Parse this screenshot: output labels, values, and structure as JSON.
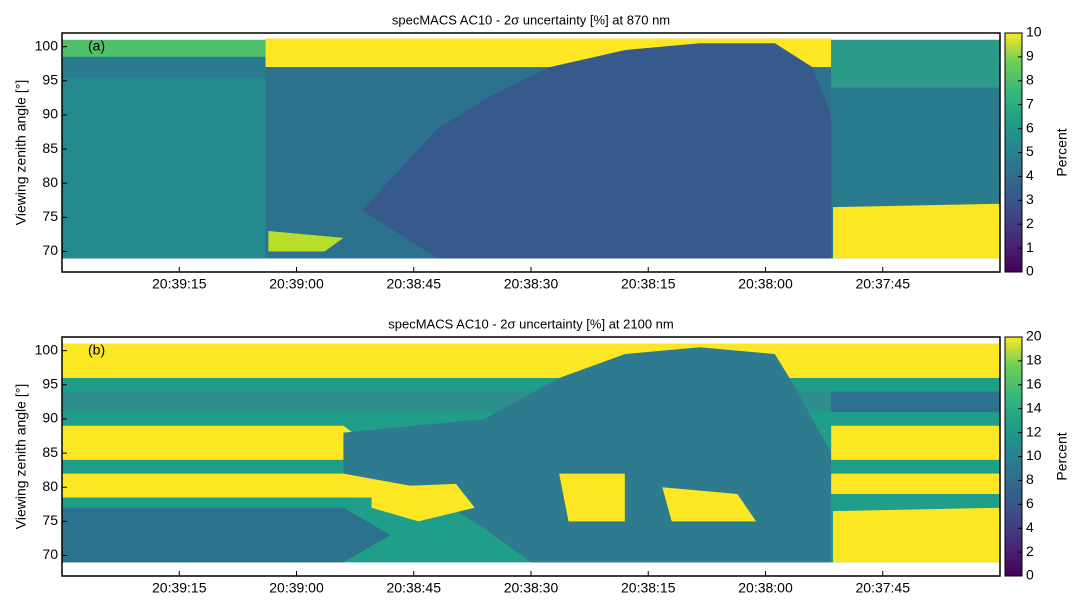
{
  "chart_data": [
    {
      "type": "heatmap",
      "title": "specMACS AC10 - 2σ uncertainty [%] at 870 nm",
      "panel_label": "(a)",
      "ylabel": "Viewing zenith angle [°]",
      "colormap": "viridis",
      "xlim": [
        74370,
        74250
      ],
      "xticks": [
        {
          "value": 74355,
          "label": "20:39:15"
        },
        {
          "value": 74340,
          "label": "20:39:00"
        },
        {
          "value": 74325,
          "label": "20:38:45"
        },
        {
          "value": 74310,
          "label": "20:38:30"
        },
        {
          "value": 74295,
          "label": "20:38:15"
        },
        {
          "value": 74280,
          "label": "20:38:00"
        },
        {
          "value": 74265,
          "label": "20:37:45"
        }
      ],
      "ylim": [
        67,
        102
      ],
      "yticks": [
        70,
        75,
        80,
        85,
        90,
        95,
        100
      ],
      "colorbar": {
        "label": "Percent",
        "lim": [
          0,
          10
        ],
        "ticks": [
          0,
          1,
          2,
          3,
          4,
          5,
          6,
          7,
          8,
          9,
          10
        ]
      }
    },
    {
      "type": "heatmap",
      "title": "specMACS AC10 - 2σ uncertainty [%] at 2100 nm",
      "panel_label": "(b)",
      "ylabel": "Viewing zenith angle [°]",
      "colormap": "viridis",
      "xlim": [
        74370,
        74250
      ],
      "xticks": [
        {
          "value": 74355,
          "label": "20:39:15"
        },
        {
          "value": 74340,
          "label": "20:39:00"
        },
        {
          "value": 74325,
          "label": "20:38:45"
        },
        {
          "value": 74310,
          "label": "20:38:30"
        },
        {
          "value": 74295,
          "label": "20:38:15"
        },
        {
          "value": 74280,
          "label": "20:38:00"
        },
        {
          "value": 74265,
          "label": "20:37:45"
        }
      ],
      "ylim": [
        67,
        102
      ],
      "yticks": [
        70,
        75,
        80,
        85,
        90,
        95,
        100
      ],
      "colorbar": {
        "label": "Percent",
        "lim": [
          0,
          20
        ],
        "ticks": [
          0,
          2,
          4,
          6,
          8,
          10,
          12,
          14,
          16,
          18,
          20
        ]
      }
    }
  ]
}
